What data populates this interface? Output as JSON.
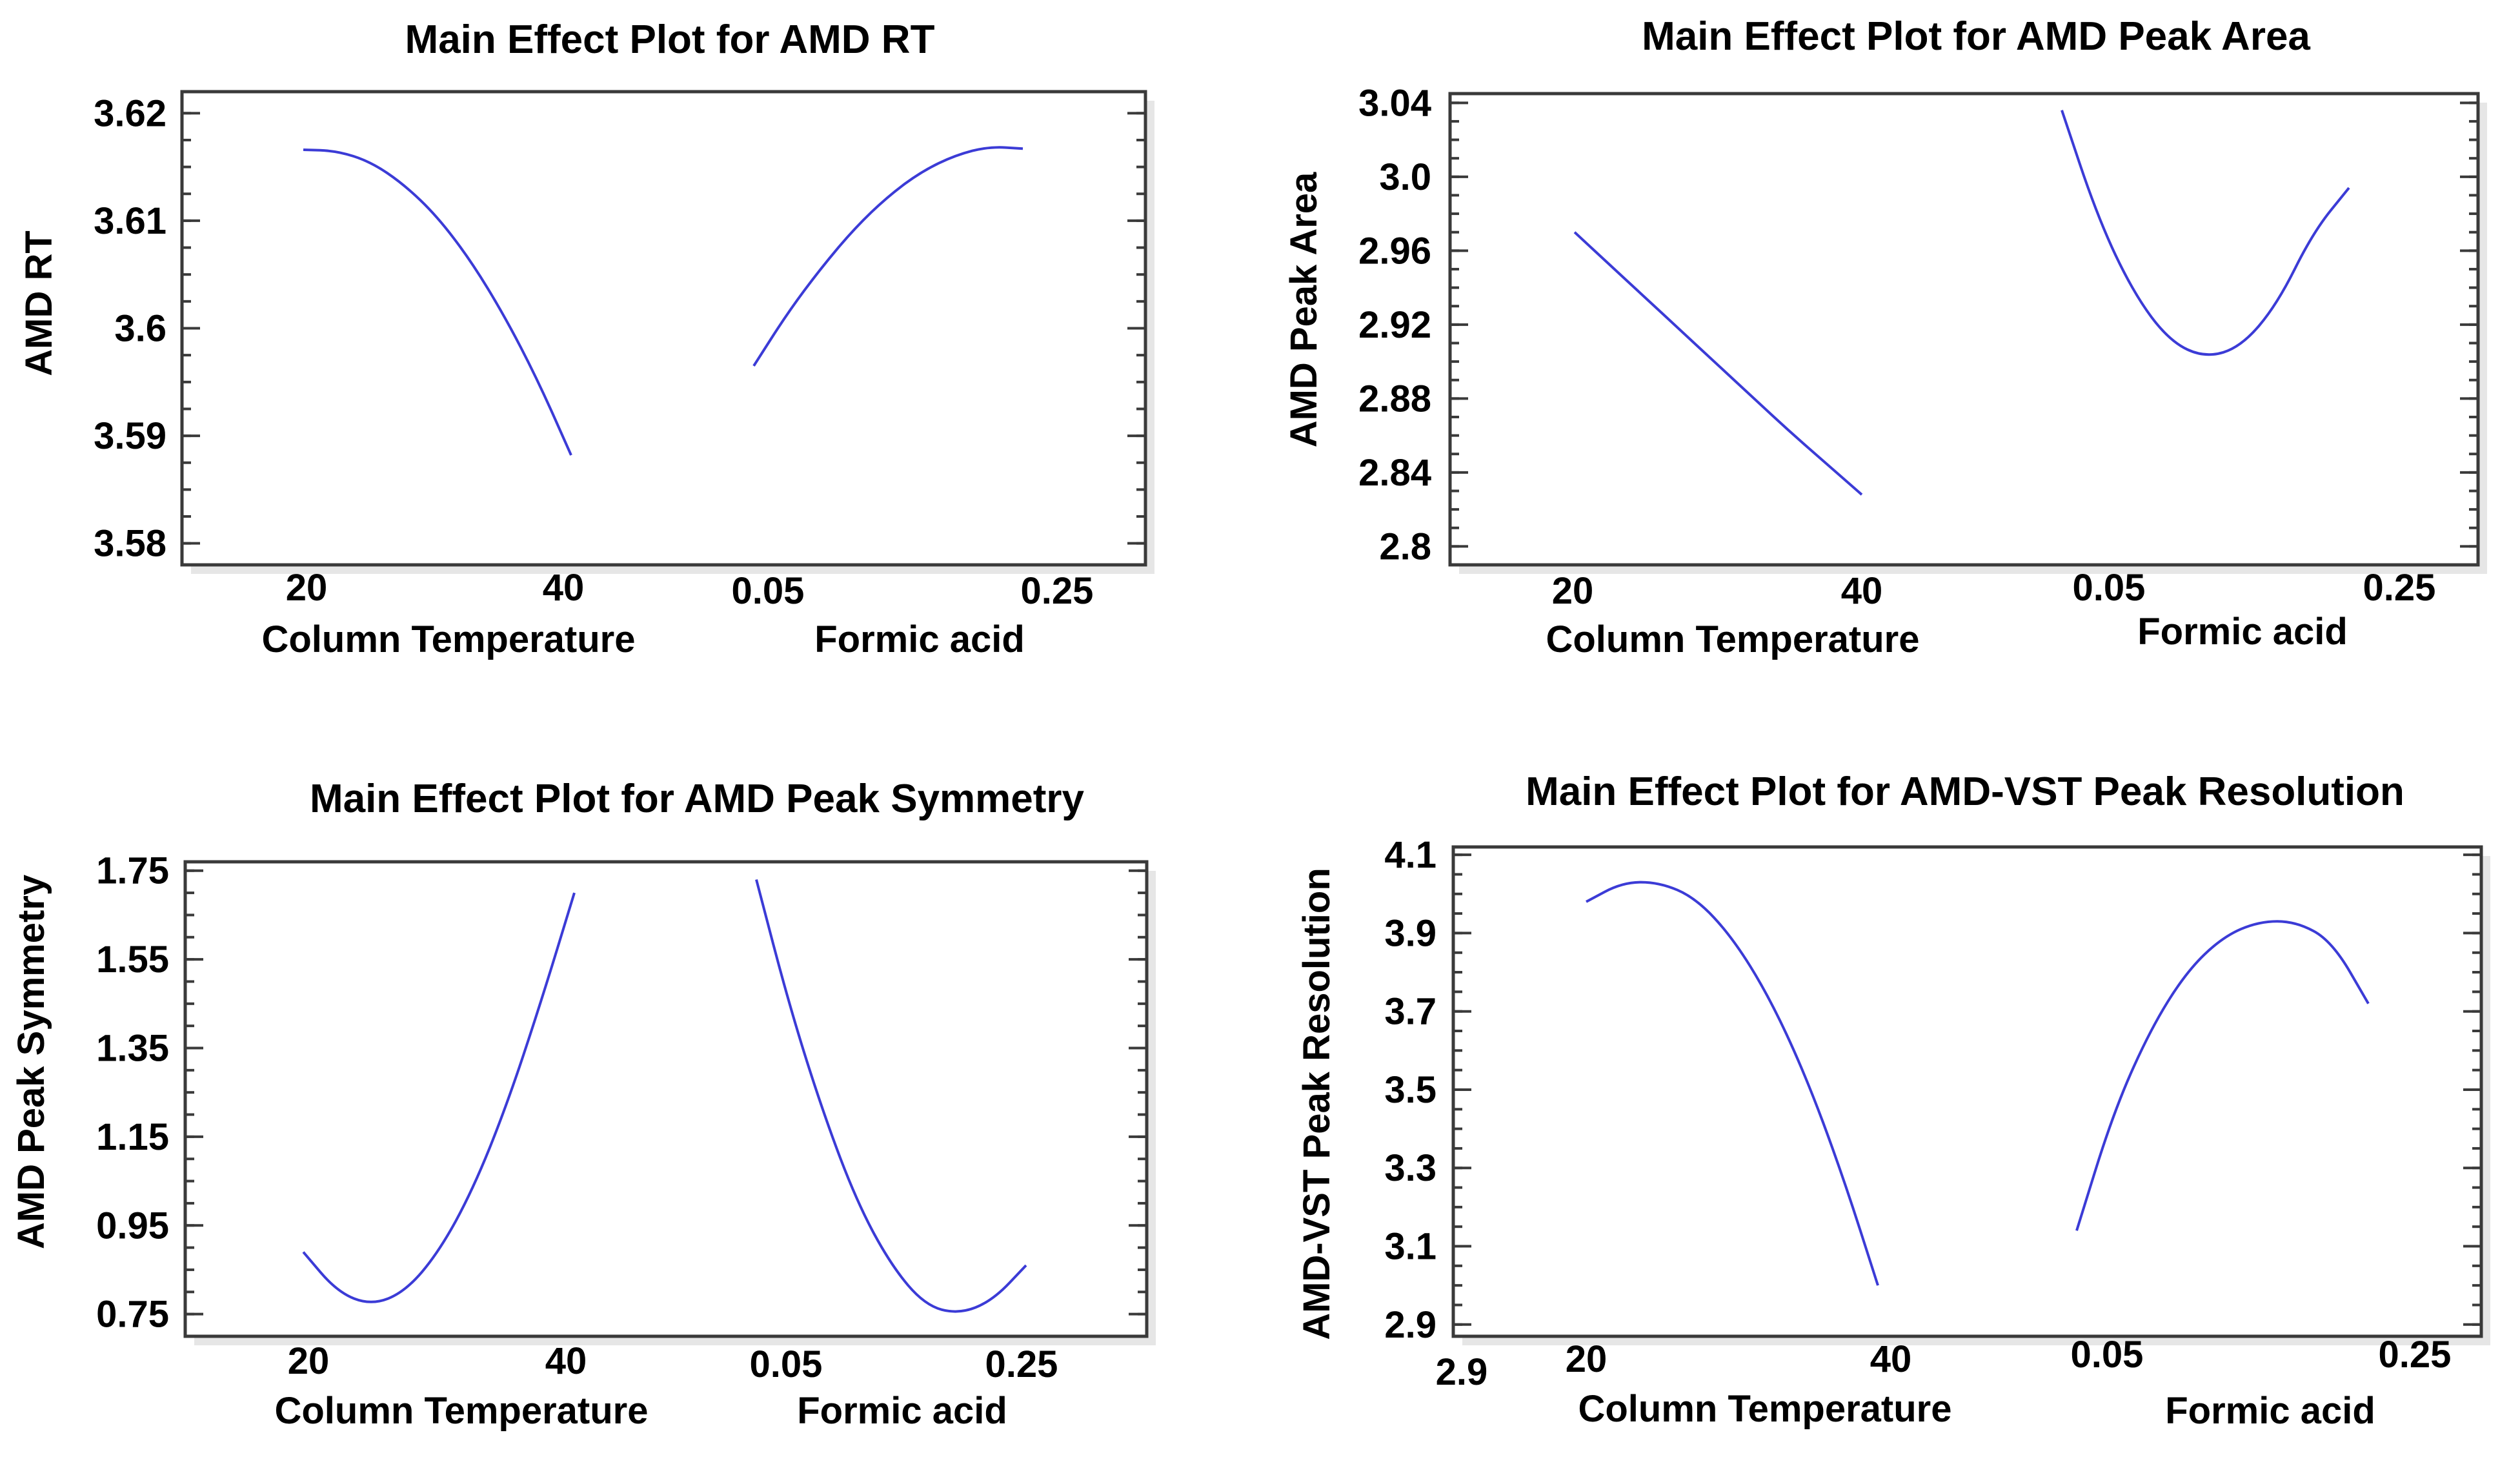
{
  "chart_data": [
    {
      "type": "line",
      "title": "Main Effect Plot for AMD RT",
      "ylabel": "AMD RT",
      "ylim": [
        3.578,
        3.622
      ],
      "yticks": [
        3.58,
        3.59,
        3.6,
        3.61,
        3.62
      ],
      "yticklabels": [
        "3.58",
        "3.59",
        "3.6",
        "3.61",
        "3.62"
      ],
      "factors": [
        {
          "name": "Column Temperature",
          "ticks": [
            "20",
            "40"
          ],
          "x": [
            20,
            22.5,
            25,
            27.5,
            30,
            32.5,
            35,
            37.5,
            40
          ],
          "y": [
            3.6166,
            3.6165,
            3.6155,
            3.6134,
            3.6104,
            3.6063,
            3.6012,
            3.5952,
            3.5882
          ]
        },
        {
          "name": "Formic acid",
          "ticks": [
            "0.05",
            "0.25"
          ],
          "x": [
            0.05,
            0.075,
            0.1,
            0.125,
            0.15,
            0.175,
            0.2,
            0.225,
            0.25
          ],
          "y": [
            3.5965,
            3.6014,
            3.6056,
            3.6093,
            3.6123,
            3.6146,
            3.6161,
            3.6169,
            3.6167
          ]
        }
      ]
    },
    {
      "type": "line",
      "title": "Main Effect Plot for AMD Peak Area",
      "ylabel": "AMD Peak Area",
      "ylim": [
        2.79,
        3.045
      ],
      "yticks": [
        2.8,
        2.84,
        2.88,
        2.92,
        2.96,
        3.0,
        3.04
      ],
      "yticklabels": [
        "2.8",
        "2.84",
        "2.88",
        "2.92",
        "2.96",
        "3.0",
        "3.04"
      ],
      "factors": [
        {
          "name": "Column Temperature",
          "ticks": [
            "20",
            "40"
          ],
          "x": [
            20,
            22.5,
            25,
            27.5,
            30,
            32.5,
            35,
            37.5,
            40
          ],
          "y": [
            2.97,
            2.952,
            2.934,
            2.916,
            2.898,
            2.88,
            2.862,
            2.845,
            2.828
          ]
        },
        {
          "name": "Formic acid",
          "ticks": [
            "0.05",
            "0.25"
          ],
          "x": [
            0.05,
            0.075,
            0.1,
            0.125,
            0.15,
            0.175,
            0.2,
            0.225,
            0.25
          ],
          "y": [
            3.036,
            2.978,
            2.937,
            2.911,
            2.902,
            2.908,
            2.931,
            2.97,
            2.994
          ]
        }
      ]
    },
    {
      "type": "line",
      "title": "Main Effect Plot for AMD Peak Symmetry",
      "ylabel": "AMD Peak Symmetry",
      "ylim": [
        0.7,
        1.77
      ],
      "yticks": [
        0.75,
        0.95,
        1.15,
        1.35,
        1.55,
        1.75
      ],
      "yticklabels": [
        "0.75",
        "0.95",
        "1.15",
        "1.35",
        "1.55",
        "1.75"
      ],
      "factors": [
        {
          "name": "Column Temperature",
          "ticks": [
            "20",
            "40"
          ],
          "x": [
            20,
            22.5,
            25,
            27.5,
            30,
            32.5,
            35,
            37.5,
            40
          ],
          "y": [
            0.89,
            0.8,
            0.77,
            0.8,
            0.89,
            1.03,
            1.22,
            1.45,
            1.7
          ]
        },
        {
          "name": "Formic acid",
          "ticks": [
            "0.05",
            "0.25"
          ],
          "x": [
            0.05,
            0.075,
            0.1,
            0.125,
            0.15,
            0.175,
            0.2,
            0.225,
            0.25
          ],
          "y": [
            1.73,
            1.44,
            1.2,
            1.0,
            0.86,
            0.77,
            0.75,
            0.78,
            0.86
          ]
        }
      ]
    },
    {
      "type": "line",
      "title": "Main Effect Plot for AMD-VST Peak Resolution",
      "ylabel": "AMD-VST Peak Resolution",
      "ylim": [
        2.87,
        4.12
      ],
      "yticks": [
        2.9,
        3.1,
        3.3,
        3.5,
        3.7,
        3.9,
        4.1
      ],
      "yticklabels": [
        "2.9",
        "3.1",
        "3.3",
        "3.5",
        "3.7",
        "3.9",
        "4.1"
      ],
      "extra_label": "2.9",
      "factors": [
        {
          "name": "Column Temperature",
          "ticks": [
            "20",
            "40"
          ],
          "x": [
            20,
            22.5,
            25,
            27.5,
            30,
            32.5,
            35,
            37.5,
            40
          ],
          "y": [
            3.98,
            4.03,
            4.03,
            3.99,
            3.89,
            3.74,
            3.54,
            3.29,
            3.0
          ]
        },
        {
          "name": "Formic acid",
          "ticks": [
            "0.05",
            "0.25"
          ],
          "x": [
            0.05,
            0.075,
            0.1,
            0.125,
            0.15,
            0.175,
            0.2,
            0.225,
            0.25
          ],
          "y": [
            3.14,
            3.44,
            3.65,
            3.8,
            3.89,
            3.93,
            3.93,
            3.88,
            3.72
          ]
        }
      ]
    }
  ]
}
